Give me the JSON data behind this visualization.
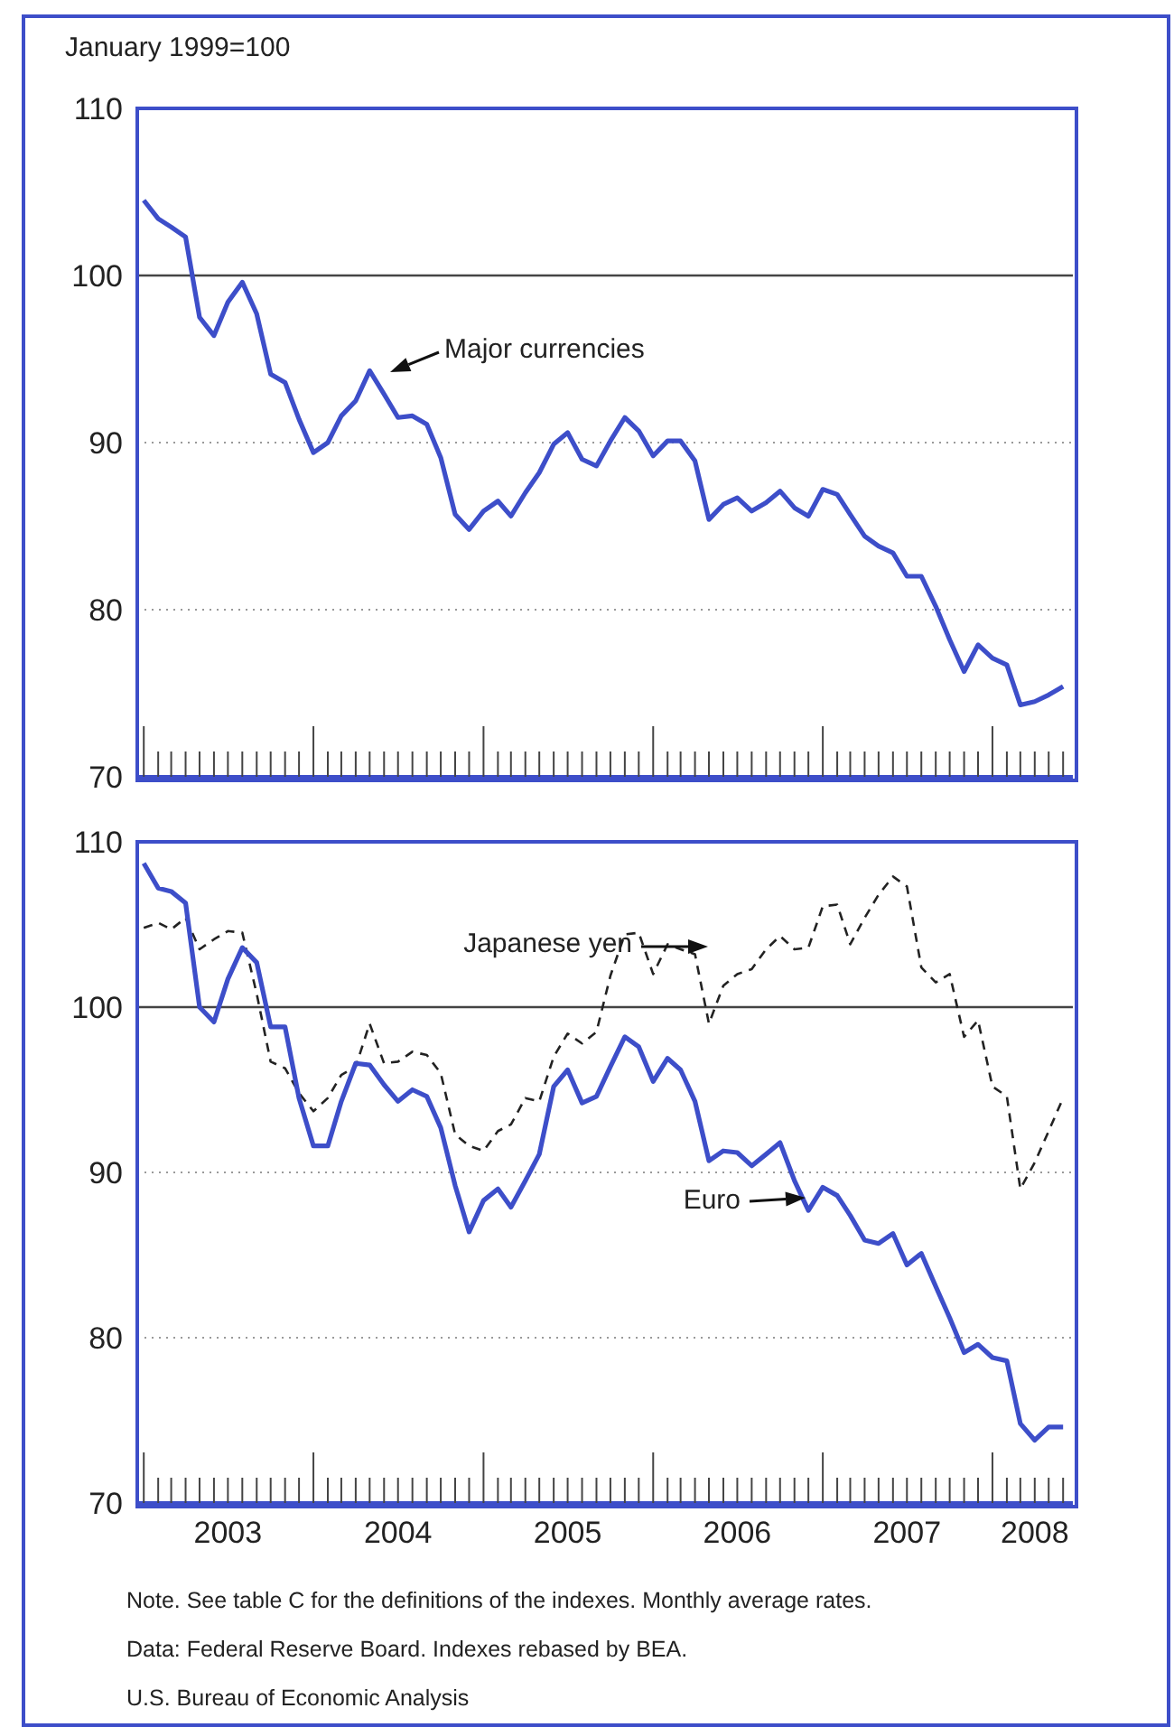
{
  "chart_data": [
    {
      "type": "line",
      "ylabel": "January 1999=100",
      "tick_labels": "y",
      "grid": "y",
      "line_style": "solid",
      "marker": "none",
      "x": [
        "2003-01",
        "2003-02",
        "2003-03",
        "2003-04",
        "2003-05",
        "2003-06",
        "2003-07",
        "2003-08",
        "2003-09",
        "2003-10",
        "2003-11",
        "2003-12",
        "2004-01",
        "2004-02",
        "2004-03",
        "2004-04",
        "2004-05",
        "2004-06",
        "2004-07",
        "2004-08",
        "2004-09",
        "2004-10",
        "2004-11",
        "2004-12",
        "2005-01",
        "2005-02",
        "2005-03",
        "2005-04",
        "2005-05",
        "2005-06",
        "2005-07",
        "2005-08",
        "2005-09",
        "2005-10",
        "2005-11",
        "2005-12",
        "2006-01",
        "2006-02",
        "2006-03",
        "2006-04",
        "2006-05",
        "2006-06",
        "2006-07",
        "2006-08",
        "2006-09",
        "2006-10",
        "2006-11",
        "2006-12",
        "2007-01",
        "2007-02",
        "2007-03",
        "2007-04",
        "2007-05",
        "2007-06",
        "2007-07",
        "2007-08",
        "2007-09",
        "2007-10",
        "2007-11",
        "2007-12",
        "2008-01",
        "2008-02",
        "2008-03",
        "2008-04",
        "2008-05",
        "2008-06"
      ],
      "xlim": [
        "2002-12-18",
        "2008-06-22"
      ],
      "xticks": [
        {
          "value": "2003-01",
          "label": null
        },
        {
          "value": "2003-02",
          "label": null
        },
        {
          "value": "2003-03",
          "label": null
        },
        {
          "value": "2003-04",
          "label": null
        },
        {
          "value": "2003-05",
          "label": null
        },
        {
          "value": "2003-06",
          "label": null
        },
        {
          "value": "2003-07",
          "label": null
        },
        {
          "value": "2003-08",
          "label": null
        },
        {
          "value": "2003-09",
          "label": null
        },
        {
          "value": "2003-10",
          "label": null
        },
        {
          "value": "2003-11",
          "label": null
        },
        {
          "value": "2003-12",
          "label": null
        },
        {
          "value": "2004-01",
          "label": null
        },
        {
          "value": "2004-02",
          "label": null
        },
        {
          "value": "2004-03",
          "label": null
        },
        {
          "value": "2004-04",
          "label": null
        },
        {
          "value": "2004-05",
          "label": null
        },
        {
          "value": "2004-06",
          "label": null
        },
        {
          "value": "2004-07",
          "label": null
        },
        {
          "value": "2004-08",
          "label": null
        },
        {
          "value": "2004-09",
          "label": null
        },
        {
          "value": "2004-10",
          "label": null
        },
        {
          "value": "2004-11",
          "label": null
        },
        {
          "value": "2004-12",
          "label": null
        },
        {
          "value": "2005-01",
          "label": null
        },
        {
          "value": "2005-02",
          "label": null
        },
        {
          "value": "2005-03",
          "label": null
        },
        {
          "value": "2005-04",
          "label": null
        },
        {
          "value": "2005-05",
          "label": null
        },
        {
          "value": "2005-06",
          "label": null
        },
        {
          "value": "2005-07",
          "label": null
        },
        {
          "value": "2005-08",
          "label": null
        },
        {
          "value": "2005-09",
          "label": null
        },
        {
          "value": "2005-10",
          "label": null
        },
        {
          "value": "2005-11",
          "label": null
        },
        {
          "value": "2005-12",
          "label": null
        },
        {
          "value": "2006-01",
          "label": null
        },
        {
          "value": "2006-02",
          "label": null
        },
        {
          "value": "2006-03",
          "label": null
        },
        {
          "value": "2006-04",
          "label": null
        },
        {
          "value": "2006-05",
          "label": null
        },
        {
          "value": "2006-06",
          "label": null
        },
        {
          "value": "2006-07",
          "label": null
        },
        {
          "value": "2006-08",
          "label": null
        },
        {
          "value": "2006-09",
          "label": null
        },
        {
          "value": "2006-10",
          "label": null
        },
        {
          "value": "2006-11",
          "label": null
        },
        {
          "value": "2006-12",
          "label": null
        },
        {
          "value": "2007-01",
          "label": null
        },
        {
          "value": "2007-02",
          "label": null
        },
        {
          "value": "2007-03",
          "label": null
        },
        {
          "value": "2007-04",
          "label": null
        },
        {
          "value": "2007-05",
          "label": null
        },
        {
          "value": "2007-06",
          "label": null
        },
        {
          "value": "2007-07",
          "label": null
        },
        {
          "value": "2007-08",
          "label": null
        },
        {
          "value": "2007-09",
          "label": null
        },
        {
          "value": "2007-10",
          "label": null
        },
        {
          "value": "2007-11",
          "label": null
        },
        {
          "value": "2007-12",
          "label": null
        },
        {
          "value": "2008-01",
          "label": null
        },
        {
          "value": "2008-02",
          "label": null
        },
        {
          "value": "2008-03",
          "label": null
        },
        {
          "value": "2008-04",
          "label": null
        },
        {
          "value": "2008-05",
          "label": null
        },
        {
          "value": "2008-06",
          "label": null
        }
      ],
      "ylim": [
        70,
        110
      ],
      "yticks": [
        70,
        80,
        90,
        100,
        110
      ],
      "ref_lines": [
        {
          "axis": "y",
          "value": 100,
          "color": "#444444"
        }
      ],
      "series": [
        {
          "name": "Major currencies",
          "color": "#3d4ec9",
          "values": [
            104.5,
            103.4,
            102.9,
            102.3,
            97.5,
            96.4,
            98.4,
            99.6,
            97.7,
            94.1,
            93.6,
            91.4,
            89.4,
            90.0,
            91.6,
            92.5,
            94.3,
            92.9,
            91.5,
            91.6,
            91.1,
            89.1,
            85.7,
            84.8,
            85.9,
            86.5,
            85.6,
            87.0,
            88.2,
            89.9,
            90.6,
            89.0,
            88.6,
            90.1,
            91.5,
            90.7,
            89.2,
            90.1,
            90.1,
            88.9,
            85.4,
            86.3,
            86.7,
            85.9,
            86.4,
            87.1,
            86.1,
            85.6,
            87.2,
            86.9,
            85.7,
            84.4,
            83.8,
            83.4,
            82.0,
            82.0,
            80.2,
            78.2,
            76.3,
            77.9,
            77.1,
            76.7,
            74.3,
            74.5,
            74.9,
            75.4
          ]
        }
      ]
    },
    {
      "type": "line",
      "grid": "y",
      "marker": "none",
      "x": [
        "2003-01",
        "2003-02",
        "2003-03",
        "2003-04",
        "2003-05",
        "2003-06",
        "2003-07",
        "2003-08",
        "2003-09",
        "2003-10",
        "2003-11",
        "2003-12",
        "2004-01",
        "2004-02",
        "2004-03",
        "2004-04",
        "2004-05",
        "2004-06",
        "2004-07",
        "2004-08",
        "2004-09",
        "2004-10",
        "2004-11",
        "2004-12",
        "2005-01",
        "2005-02",
        "2005-03",
        "2005-04",
        "2005-05",
        "2005-06",
        "2005-07",
        "2005-08",
        "2005-09",
        "2005-10",
        "2005-11",
        "2005-12",
        "2006-01",
        "2006-02",
        "2006-03",
        "2006-04",
        "2006-05",
        "2006-06",
        "2006-07",
        "2006-08",
        "2006-09",
        "2006-10",
        "2006-11",
        "2006-12",
        "2007-01",
        "2007-02",
        "2007-03",
        "2007-04",
        "2007-05",
        "2007-06",
        "2007-07",
        "2007-08",
        "2007-09",
        "2007-10",
        "2007-11",
        "2007-12",
        "2008-01",
        "2008-02",
        "2008-03",
        "2008-04",
        "2008-05",
        "2008-06"
      ],
      "xlim": [
        "2002-12-18",
        "2008-06-22"
      ],
      "xticks": [
        {
          "value": "2003-01",
          "label": null
        },
        {
          "value": "2003-02",
          "label": null
        },
        {
          "value": "2003-03",
          "label": null
        },
        {
          "value": "2003-04",
          "label": null
        },
        {
          "value": "2003-05",
          "label": null
        },
        {
          "value": "2003-06",
          "label": null
        },
        {
          "value": "2003-07",
          "label": "2003"
        },
        {
          "value": "2003-08",
          "label": null
        },
        {
          "value": "2003-09",
          "label": null
        },
        {
          "value": "2003-10",
          "label": null
        },
        {
          "value": "2003-11",
          "label": null
        },
        {
          "value": "2003-12",
          "label": null
        },
        {
          "value": "2004-01",
          "label": null
        },
        {
          "value": "2004-02",
          "label": null
        },
        {
          "value": "2004-03",
          "label": null
        },
        {
          "value": "2004-04",
          "label": null
        },
        {
          "value": "2004-05",
          "label": null
        },
        {
          "value": "2004-06",
          "label": null
        },
        {
          "value": "2004-07",
          "label": "2004"
        },
        {
          "value": "2004-08",
          "label": null
        },
        {
          "value": "2004-09",
          "label": null
        },
        {
          "value": "2004-10",
          "label": null
        },
        {
          "value": "2004-11",
          "label": null
        },
        {
          "value": "2004-12",
          "label": null
        },
        {
          "value": "2005-01",
          "label": null
        },
        {
          "value": "2005-02",
          "label": null
        },
        {
          "value": "2005-03",
          "label": null
        },
        {
          "value": "2005-04",
          "label": null
        },
        {
          "value": "2005-05",
          "label": null
        },
        {
          "value": "2005-06",
          "label": null
        },
        {
          "value": "2005-07",
          "label": "2005"
        },
        {
          "value": "2005-08",
          "label": null
        },
        {
          "value": "2005-09",
          "label": null
        },
        {
          "value": "2005-10",
          "label": null
        },
        {
          "value": "2005-11",
          "label": null
        },
        {
          "value": "2005-12",
          "label": null
        },
        {
          "value": "2006-01",
          "label": null
        },
        {
          "value": "2006-02",
          "label": null
        },
        {
          "value": "2006-03",
          "label": null
        },
        {
          "value": "2006-04",
          "label": null
        },
        {
          "value": "2006-05",
          "label": null
        },
        {
          "value": "2006-06",
          "label": null
        },
        {
          "value": "2006-07",
          "label": "2006"
        },
        {
          "value": "2006-08",
          "label": null
        },
        {
          "value": "2006-09",
          "label": null
        },
        {
          "value": "2006-10",
          "label": null
        },
        {
          "value": "2006-11",
          "label": null
        },
        {
          "value": "2006-12",
          "label": null
        },
        {
          "value": "2007-01",
          "label": null
        },
        {
          "value": "2007-02",
          "label": null
        },
        {
          "value": "2007-03",
          "label": null
        },
        {
          "value": "2007-04",
          "label": null
        },
        {
          "value": "2007-05",
          "label": null
        },
        {
          "value": "2007-06",
          "label": null
        },
        {
          "value": "2007-07",
          "label": "2007"
        },
        {
          "value": "2007-08",
          "label": null
        },
        {
          "value": "2007-09",
          "label": null
        },
        {
          "value": "2007-10",
          "label": null
        },
        {
          "value": "2007-11",
          "label": null
        },
        {
          "value": "2007-12",
          "label": null
        },
        {
          "value": "2008-01",
          "label": null
        },
        {
          "value": "2008-02",
          "label": null
        },
        {
          "value": "2008-03",
          "label": null
        },
        {
          "value": "2008-04",
          "label": "2008"
        },
        {
          "value": "2008-05",
          "label": null
        },
        {
          "value": "2008-06",
          "label": null
        }
      ],
      "ylim": [
        70,
        110
      ],
      "yticks": [
        70,
        80,
        90,
        100,
        110
      ],
      "ref_lines": [
        {
          "axis": "y",
          "value": 100,
          "color": "#444444"
        }
      ],
      "series": [
        {
          "name": "Japanese yen",
          "color": "#222222",
          "line_style": "dashed",
          "values": [
            104.8,
            105.1,
            104.7,
            105.4,
            103.5,
            104.1,
            104.6,
            104.5,
            100.8,
            96.7,
            96.3,
            94.8,
            93.7,
            94.5,
            95.9,
            96.4,
            99.0,
            96.6,
            96.7,
            97.3,
            97.1,
            96.0,
            92.3,
            91.6,
            91.3,
            92.5,
            92.9,
            94.5,
            94.3,
            97.0,
            98.4,
            97.8,
            98.5,
            101.9,
            104.4,
            104.5,
            102.0,
            103.8,
            103.5,
            103.2,
            99.0,
            101.3,
            102.0,
            102.3,
            103.5,
            104.3,
            103.5,
            103.6,
            106.1,
            106.2,
            103.8,
            105.4,
            106.8,
            107.9,
            107.3,
            102.4,
            101.5,
            102.0,
            98.2,
            99.2,
            95.2,
            94.6,
            89.0,
            90.6,
            92.5,
            94.5
          ]
        },
        {
          "name": "Euro",
          "color": "#3d4ec9",
          "line_style": "solid",
          "values": [
            108.7,
            107.2,
            107.0,
            106.3,
            100.0,
            99.1,
            101.7,
            103.6,
            102.7,
            98.8,
            98.8,
            94.5,
            91.6,
            91.6,
            94.3,
            96.6,
            96.5,
            95.3,
            94.3,
            95.0,
            94.6,
            92.7,
            89.2,
            86.4,
            88.3,
            89.0,
            87.9,
            89.5,
            91.1,
            95.2,
            96.2,
            94.2,
            94.6,
            96.4,
            98.2,
            97.6,
            95.5,
            96.9,
            96.2,
            94.3,
            90.7,
            91.3,
            91.2,
            90.4,
            91.1,
            91.8,
            89.5,
            87.7,
            89.1,
            88.6,
            87.4,
            85.9,
            85.7,
            86.3,
            84.4,
            85.1,
            83.1,
            81.2,
            79.1,
            79.6,
            78.8,
            78.6,
            74.8,
            73.8,
            74.6,
            74.6
          ]
        }
      ],
      "annotations": [
        "Note. See table C for the definitions of the indexes. Monthly average rates.",
        "Data: Federal Reserve Board. Indexes rebased by BEA.",
        "U.S. Bureau of Economic Analysis"
      ]
    }
  ]
}
